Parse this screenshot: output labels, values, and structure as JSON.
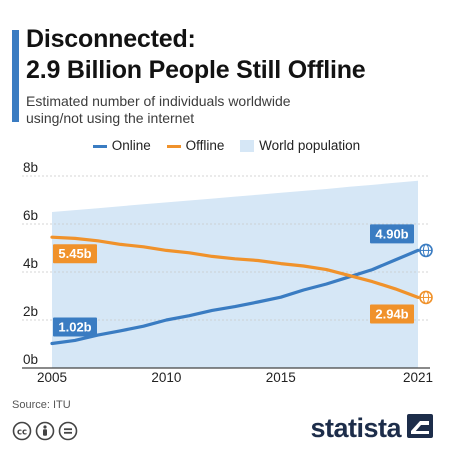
{
  "title_line1": "Disconnected:",
  "title_line2": "2.9 Billion People Still Offline",
  "subtitle_line1": "Estimated number of individuals worldwide",
  "subtitle_line2": "using/not using the internet",
  "source": "Source: ITU",
  "brand": "statista",
  "colors": {
    "online": "#3a7cc2",
    "offline": "#f0922b",
    "population": "#d6e7f6",
    "accent": "#3a7cc2"
  },
  "icons": [
    "cc-license-icon",
    "attribution-icon",
    "no-derivatives-icon",
    "statista-logo-icon"
  ],
  "chart_data": {
    "type": "line",
    "title": "2.9 Billion People Still Offline",
    "x": [
      2005,
      2006,
      2007,
      2008,
      2009,
      2010,
      2011,
      2012,
      2013,
      2014,
      2015,
      2016,
      2017,
      2018,
      2019,
      2020,
      2021
    ],
    "series": [
      {
        "name": "Online",
        "kind": "line",
        "color": "#3a7cc2",
        "values": [
          1.02,
          1.15,
          1.37,
          1.55,
          1.74,
          2.0,
          2.18,
          2.4,
          2.56,
          2.75,
          2.95,
          3.25,
          3.5,
          3.8,
          4.1,
          4.5,
          4.9
        ]
      },
      {
        "name": "Offline",
        "kind": "line",
        "color": "#f0922b",
        "values": [
          5.45,
          5.4,
          5.3,
          5.15,
          5.05,
          4.9,
          4.8,
          4.65,
          4.55,
          4.48,
          4.35,
          4.25,
          4.1,
          3.85,
          3.6,
          3.3,
          2.94
        ]
      },
      {
        "name": "World population",
        "kind": "area",
        "color": "#d6e7f6",
        "values": [
          6.5,
          6.58,
          6.66,
          6.74,
          6.82,
          6.9,
          6.98,
          7.06,
          7.14,
          7.22,
          7.3,
          7.38,
          7.46,
          7.55,
          7.63,
          7.72,
          7.8
        ]
      }
    ],
    "data_labels": [
      {
        "series": "Online",
        "x": 2005,
        "text": "1.02b"
      },
      {
        "series": "Offline",
        "x": 2005,
        "text": "5.45b"
      },
      {
        "series": "Online",
        "x": 2021,
        "text": "4.90b"
      },
      {
        "series": "Offline",
        "x": 2021,
        "text": "2.94b"
      }
    ],
    "x_ticks": [
      2005,
      2010,
      2015,
      2021
    ],
    "y_ticks": [
      0,
      2,
      4,
      6,
      8
    ],
    "y_tick_labels": [
      "0b",
      "2b",
      "4b",
      "6b",
      "8b"
    ],
    "xlim": [
      2005,
      2021
    ],
    "ylim": [
      0,
      8
    ],
    "grid": true,
    "legend_position": "top"
  }
}
